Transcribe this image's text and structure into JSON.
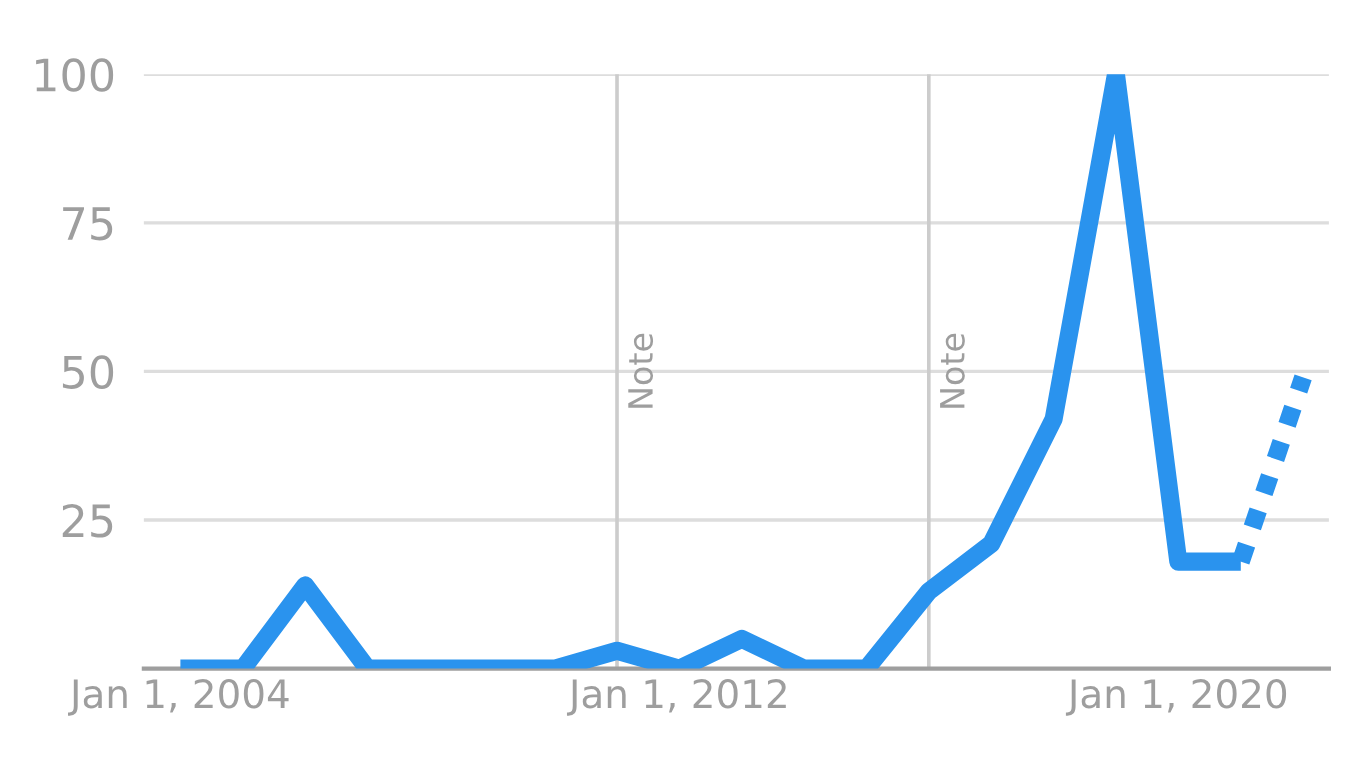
{
  "chart_data": {
    "type": "line",
    "series": [
      {
        "color": "#2a93ee",
        "line_style": "solid",
        "x": [
          "2004",
          "2005",
          "2006",
          "2007",
          "2008",
          "2009",
          "2010",
          "2011",
          "2012",
          "2013",
          "2014",
          "2015",
          "2016",
          "2017",
          "2018",
          "2019",
          "2020",
          "2021"
        ],
        "values": [
          0,
          0,
          14,
          0,
          0,
          0,
          0,
          3,
          0,
          5,
          0,
          0,
          13,
          21,
          42,
          100,
          18,
          18
        ]
      },
      {
        "color": "#2a93ee",
        "line_style": "dotted",
        "x": [
          "2021",
          "2022"
        ],
        "values": [
          18,
          49
        ]
      }
    ],
    "xlim": [
      "2003-06-01",
      "2022-06-01"
    ],
    "xticks": [
      {
        "value": "2004-01-01",
        "label": "Jan 1, 2004"
      },
      {
        "value": "2012-01-01",
        "label": "Jan 1, 2012"
      },
      {
        "value": "2020-01-01",
        "label": "Jan 1, 2020"
      }
    ],
    "ylim": [
      0,
      100
    ],
    "yticks": [
      {
        "value": 0,
        "label": null
      },
      25,
      50,
      75,
      100
    ],
    "grid": "y",
    "ref_lines": [
      {
        "axis": "x",
        "value": "2011",
        "label": "Note",
        "color": "#cccccc"
      },
      {
        "axis": "x",
        "value": "2016",
        "label": "Note",
        "color": "#cccccc"
      }
    ]
  }
}
